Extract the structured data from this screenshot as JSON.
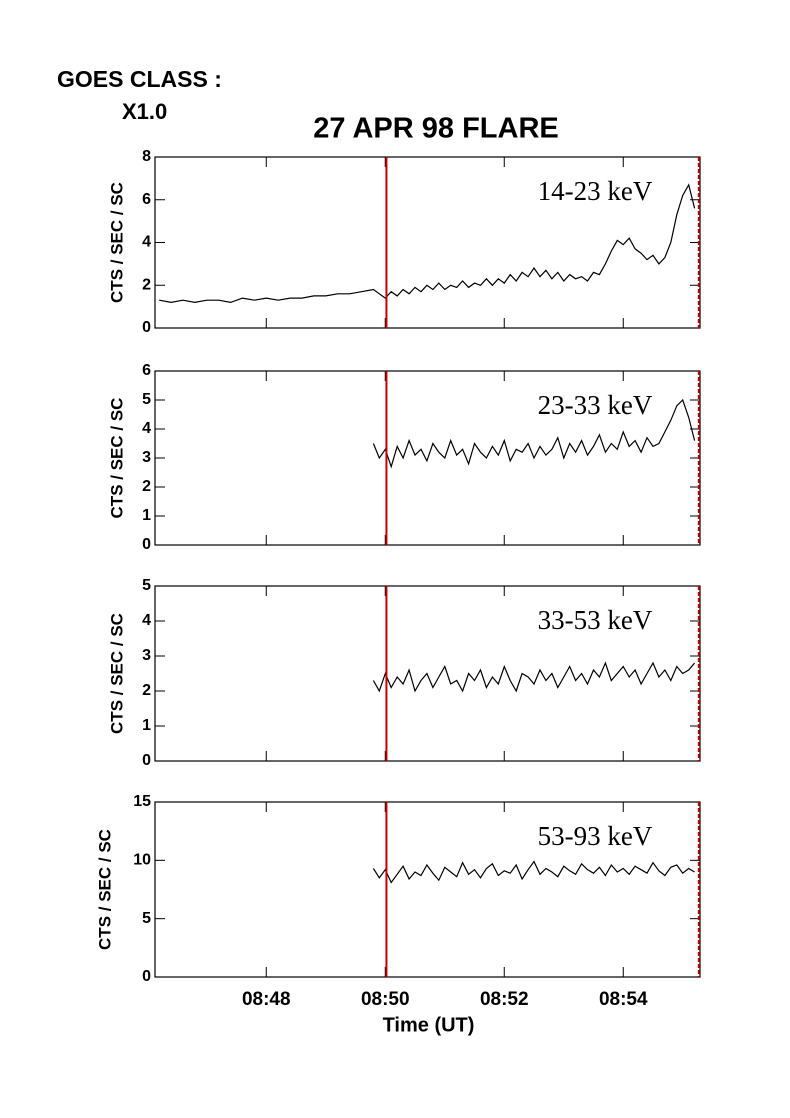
{
  "header": {
    "label": "GOES CLASS :",
    "class": "X1.0"
  },
  "chart_data": [
    {
      "type": "line",
      "title": "27 APR 98 FLARE",
      "y_label": "CTS / SEC / SC",
      "annotation": "14-23 keV",
      "ylim": [
        0,
        8
      ],
      "yticks": [
        0,
        2,
        4,
        6,
        8
      ],
      "color": "#000000",
      "x": [
        46.2,
        46.4,
        46.6,
        46.8,
        47.0,
        47.2,
        47.4,
        47.6,
        47.8,
        48.0,
        48.2,
        48.4,
        48.6,
        48.8,
        49.0,
        49.2,
        49.4,
        49.6,
        49.8,
        49.9,
        50.0,
        50.1,
        50.2,
        50.3,
        50.4,
        50.5,
        50.6,
        50.7,
        50.8,
        50.9,
        51.0,
        51.1,
        51.2,
        51.3,
        51.4,
        51.5,
        51.6,
        51.7,
        51.8,
        51.9,
        52.0,
        52.1,
        52.2,
        52.3,
        52.4,
        52.5,
        52.6,
        52.7,
        52.8,
        52.9,
        53.0,
        53.1,
        53.2,
        53.3,
        53.4,
        53.5,
        53.6,
        53.7,
        53.8,
        53.9,
        54.0,
        54.1,
        54.2,
        54.3,
        54.4,
        54.5,
        54.6,
        54.7,
        54.8,
        54.9,
        55.0,
        55.1,
        55.2
      ],
      "values": [
        1.3,
        1.2,
        1.3,
        1.2,
        1.3,
        1.3,
        1.2,
        1.4,
        1.3,
        1.4,
        1.3,
        1.4,
        1.4,
        1.5,
        1.5,
        1.6,
        1.6,
        1.7,
        1.8,
        1.6,
        1.4,
        1.7,
        1.5,
        1.8,
        1.6,
        1.9,
        1.7,
        2.0,
        1.8,
        2.1,
        1.8,
        2.0,
        1.9,
        2.2,
        1.9,
        2.1,
        2.0,
        2.3,
        2.0,
        2.3,
        2.1,
        2.5,
        2.2,
        2.6,
        2.4,
        2.8,
        2.4,
        2.7,
        2.3,
        2.6,
        2.2,
        2.5,
        2.3,
        2.4,
        2.2,
        2.6,
        2.5,
        3.0,
        3.6,
        4.1,
        3.9,
        4.2,
        3.7,
        3.5,
        3.2,
        3.4,
        3.0,
        3.3,
        4.0,
        5.3,
        6.2,
        6.7,
        5.6
      ]
    },
    {
      "type": "line",
      "y_label": "CTS / SEC / SC",
      "annotation": "23-33 keV",
      "ylim": [
        0,
        6
      ],
      "yticks": [
        0,
        1,
        2,
        3,
        4,
        5,
        6
      ],
      "color": "#000000",
      "x": [
        49.8,
        49.9,
        50.0,
        50.1,
        50.2,
        50.3,
        50.4,
        50.5,
        50.6,
        50.7,
        50.8,
        50.9,
        51.0,
        51.1,
        51.2,
        51.3,
        51.4,
        51.5,
        51.6,
        51.7,
        51.8,
        51.9,
        52.0,
        52.1,
        52.2,
        52.3,
        52.4,
        52.5,
        52.6,
        52.7,
        52.8,
        52.9,
        53.0,
        53.1,
        53.2,
        53.3,
        53.4,
        53.5,
        53.6,
        53.7,
        53.8,
        53.9,
        54.0,
        54.1,
        54.2,
        54.3,
        54.4,
        54.5,
        54.6,
        54.7,
        54.8,
        54.9,
        55.0,
        55.1,
        55.2
      ],
      "values": [
        3.5,
        3.0,
        3.3,
        2.7,
        3.4,
        3.0,
        3.6,
        3.1,
        3.3,
        2.9,
        3.5,
        3.2,
        3.0,
        3.6,
        3.1,
        3.3,
        2.8,
        3.5,
        3.2,
        3.0,
        3.4,
        3.1,
        3.6,
        2.9,
        3.3,
        3.2,
        3.5,
        3.0,
        3.4,
        3.1,
        3.3,
        3.7,
        3.0,
        3.5,
        3.2,
        3.6,
        3.1,
        3.4,
        3.8,
        3.2,
        3.5,
        3.3,
        3.9,
        3.4,
        3.6,
        3.2,
        3.7,
        3.4,
        3.5,
        3.9,
        4.3,
        4.8,
        5.0,
        4.4,
        3.6
      ]
    },
    {
      "type": "line",
      "y_label": "CTS / SEC / SC",
      "annotation": "33-53 keV",
      "ylim": [
        0,
        5
      ],
      "yticks": [
        0,
        1,
        2,
        3,
        4,
        5
      ],
      "color": "#000000",
      "x": [
        49.8,
        49.9,
        50.0,
        50.1,
        50.2,
        50.3,
        50.4,
        50.5,
        50.6,
        50.7,
        50.8,
        50.9,
        51.0,
        51.1,
        51.2,
        51.3,
        51.4,
        51.5,
        51.6,
        51.7,
        51.8,
        51.9,
        52.0,
        52.1,
        52.2,
        52.3,
        52.4,
        52.5,
        52.6,
        52.7,
        52.8,
        52.9,
        53.0,
        53.1,
        53.2,
        53.3,
        53.4,
        53.5,
        53.6,
        53.7,
        53.8,
        53.9,
        54.0,
        54.1,
        54.2,
        54.3,
        54.4,
        54.5,
        54.6,
        54.7,
        54.8,
        54.9,
        55.0,
        55.1,
        55.2
      ],
      "values": [
        2.3,
        2.0,
        2.5,
        2.1,
        2.4,
        2.2,
        2.6,
        2.0,
        2.3,
        2.5,
        2.1,
        2.4,
        2.7,
        2.2,
        2.3,
        2.0,
        2.5,
        2.3,
        2.6,
        2.1,
        2.4,
        2.2,
        2.7,
        2.3,
        2.0,
        2.5,
        2.4,
        2.2,
        2.6,
        2.3,
        2.5,
        2.1,
        2.4,
        2.7,
        2.3,
        2.5,
        2.2,
        2.6,
        2.4,
        2.8,
        2.3,
        2.5,
        2.7,
        2.4,
        2.6,
        2.2,
        2.5,
        2.8,
        2.4,
        2.6,
        2.3,
        2.7,
        2.5,
        2.6,
        2.8
      ]
    },
    {
      "type": "line",
      "y_label": "CTS / SEC / SC",
      "annotation": "53-93 keV",
      "x_label": "Time (UT)",
      "ylim": [
        0,
        15
      ],
      "yticks": [
        0,
        5,
        10,
        15
      ],
      "color": "#000000",
      "xlim": [
        46.13,
        55.29
      ],
      "xticks": [
        {
          "value": 48,
          "label": "08:48"
        },
        {
          "value": 50,
          "label": "08:50"
        },
        {
          "value": 52,
          "label": "08:52"
        },
        {
          "value": 54,
          "label": "08:54"
        }
      ],
      "vlines": [
        50.02,
        55.27
      ],
      "vline_color": "#c00000",
      "x": [
        49.8,
        49.9,
        50.0,
        50.1,
        50.2,
        50.3,
        50.4,
        50.5,
        50.6,
        50.7,
        50.8,
        50.9,
        51.0,
        51.1,
        51.2,
        51.3,
        51.4,
        51.5,
        51.6,
        51.7,
        51.8,
        51.9,
        52.0,
        52.1,
        52.2,
        52.3,
        52.4,
        52.5,
        52.6,
        52.7,
        52.8,
        52.9,
        53.0,
        53.1,
        53.2,
        53.3,
        53.4,
        53.5,
        53.6,
        53.7,
        53.8,
        53.9,
        54.0,
        54.1,
        54.2,
        54.3,
        54.4,
        54.5,
        54.6,
        54.7,
        54.8,
        54.9,
        55.0,
        55.1,
        55.2
      ],
      "values": [
        9.3,
        8.5,
        9.2,
        8.1,
        8.8,
        9.5,
        8.4,
        9.0,
        8.7,
        9.6,
        8.9,
        8.3,
        9.4,
        9.0,
        8.6,
        9.8,
        8.8,
        9.2,
        8.5,
        9.3,
        9.7,
        8.7,
        9.1,
        8.9,
        9.6,
        8.4,
        9.2,
        9.9,
        8.8,
        9.3,
        9.0,
        8.6,
        9.5,
        9.1,
        8.8,
        9.7,
        9.2,
        8.9,
        9.4,
        8.7,
        9.6,
        9.0,
        9.3,
        8.8,
        9.5,
        9.2,
        8.9,
        9.8,
        9.1,
        8.7,
        9.4,
        9.6,
        8.9,
        9.3,
        9.0
      ]
    }
  ]
}
